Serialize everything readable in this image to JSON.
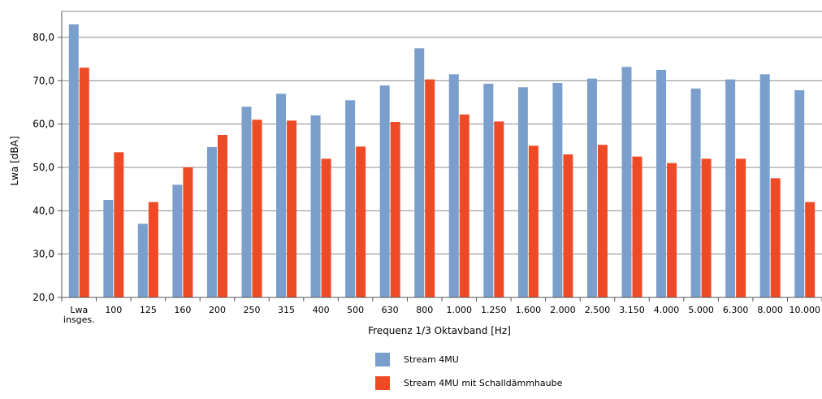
{
  "chart_data": {
    "type": "bar",
    "title": "",
    "xlabel": "Frequenz 1/3 Oktavband [Hz]",
    "ylabel": "Lwa [dBA]",
    "ylim": [
      20,
      86
    ],
    "yticks": [
      "20,0",
      "30,0",
      "40,0",
      "50,0",
      "60,0",
      "70,0",
      "80,0"
    ],
    "grid": true,
    "legend_position": "bottom",
    "categories": [
      [
        "Lwa",
        "insges."
      ],
      [
        "100"
      ],
      [
        "125"
      ],
      [
        "160"
      ],
      [
        "200"
      ],
      [
        "250"
      ],
      [
        "315"
      ],
      [
        "400"
      ],
      [
        "500"
      ],
      [
        "630"
      ],
      [
        "800"
      ],
      [
        "1.000"
      ],
      [
        "1.250"
      ],
      [
        "1.600"
      ],
      [
        "2.000"
      ],
      [
        "2.500"
      ],
      [
        "3.150"
      ],
      [
        "4.000"
      ],
      [
        "5.000"
      ],
      [
        "6.300"
      ],
      [
        "8.000"
      ],
      [
        "10.000"
      ]
    ],
    "series": [
      {
        "name": "Stream 4MU",
        "color": "#7b9fcc",
        "values": [
          83.0,
          42.5,
          37.0,
          46.0,
          54.7,
          64.0,
          67.0,
          62.0,
          65.5,
          68.9,
          77.5,
          71.5,
          69.3,
          68.5,
          69.5,
          70.5,
          73.2,
          72.5,
          68.2,
          70.3,
          71.5,
          67.8
        ]
      },
      {
        "name": "Stream 4MU mit Schalldämmhaube",
        "color": "#ef4a26",
        "values": [
          73.0,
          53.5,
          42.0,
          50.0,
          57.5,
          61.0,
          60.8,
          52.0,
          54.8,
          60.5,
          70.3,
          62.2,
          60.6,
          55.0,
          53.0,
          55.2,
          52.5,
          51.0,
          52.0,
          52.0,
          47.5,
          42.0
        ]
      }
    ]
  }
}
